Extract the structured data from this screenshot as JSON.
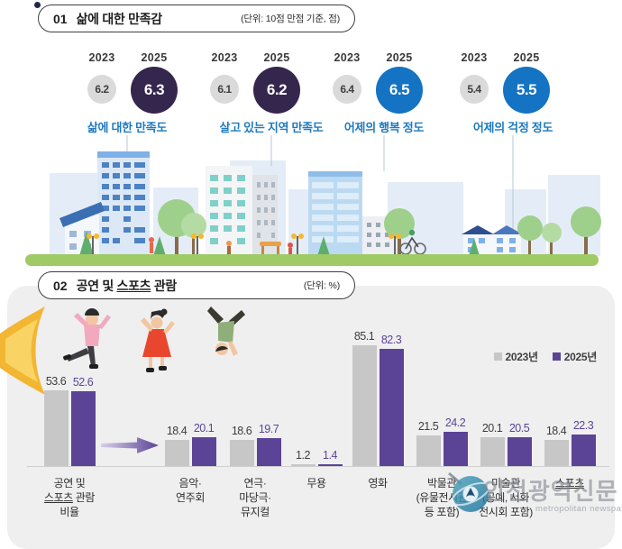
{
  "section1": {
    "number": "01",
    "title": "삶에 대한 만족감",
    "unit": "(단위: 10점 만점 기준, 점)",
    "years": [
      "2023",
      "2025"
    ],
    "metrics": [
      {
        "label": "삶에 대한 만족도",
        "y2023": "6.2",
        "y2025": "6.3",
        "color": "#35264d"
      },
      {
        "label": "살고 있는 지역 만족도",
        "y2023": "6.1",
        "y2025": "6.2",
        "color": "#35264d"
      },
      {
        "label": "어제의 행복 정도",
        "y2023": "6.4",
        "y2025": "6.5",
        "color": "#1473c2"
      },
      {
        "label": "어제의 걱정 정도",
        "y2023": "5.4",
        "y2025": "5.5",
        "color": "#1473c2"
      }
    ]
  },
  "section2": {
    "number": "02",
    "title_segments": [
      {
        "t": "공연 및 "
      },
      {
        "t": "스포츠",
        "u": true
      },
      {
        "t": " 관람"
      }
    ],
    "unit": "(단위: %)",
    "legend": [
      {
        "label": "2023년",
        "color": "#c7c7c7"
      },
      {
        "label": "2025년",
        "color": "#5b4496"
      }
    ]
  },
  "chart_data": {
    "type": "bar",
    "title": "공연 및 스포츠 관람",
    "unit": "%",
    "ylim": [
      0,
      100
    ],
    "legend_position": "top-right",
    "grid": false,
    "categories": [
      "공연 및 스포츠 관람 비율",
      "음악·연주회",
      "연극·마당극·뮤지컬",
      "무용",
      "영화",
      "박물관(유물전시관 등 포함)",
      "미술관(공예, 서화 전시회 포함)",
      "스포츠"
    ],
    "category_lines": [
      [
        [
          {
            "t": "공연 및"
          }
        ],
        [
          {
            "t": "스포츠",
            "u": true
          },
          {
            "t": " 관람"
          }
        ],
        [
          {
            "t": "비율"
          }
        ]
      ],
      [
        [
          {
            "t": "음악·"
          }
        ],
        [
          {
            "t": "연주회"
          }
        ]
      ],
      [
        [
          {
            "t": "연극·"
          }
        ],
        [
          {
            "t": "마당극·"
          }
        ],
        [
          {
            "t": "뮤지컬"
          }
        ]
      ],
      [
        [
          {
            "t": "무용"
          }
        ]
      ],
      [
        [
          {
            "t": "영화"
          }
        ]
      ],
      [
        [
          {
            "t": "박물관"
          }
        ],
        [
          {
            "t": "(유물전시관"
          }
        ],
        [
          {
            "t": "등 포함)"
          }
        ]
      ],
      [
        [
          {
            "t": "미술관"
          }
        ],
        [
          {
            "t": "(공예, 서화"
          }
        ],
        [
          {
            "t": "전시회 포함)"
          }
        ]
      ],
      [
        [
          {
            "t": "스포츠",
            "u": true
          }
        ]
      ]
    ],
    "series": [
      {
        "name": "2023년",
        "color": "#c7c7c7",
        "label_color": "#3d3d3d",
        "values": [
          53.6,
          18.4,
          18.6,
          1.2,
          85.1,
          21.5,
          20.1,
          18.4
        ]
      },
      {
        "name": "2025년",
        "color": "#5b4496",
        "label_color": "#5b4496",
        "values": [
          52.6,
          20.1,
          19.7,
          1.4,
          82.3,
          24.2,
          20.5,
          22.3
        ]
      }
    ]
  },
  "watermark": {
    "name": "인천광역신문",
    "subtitle": "metropolitan newspaper"
  }
}
